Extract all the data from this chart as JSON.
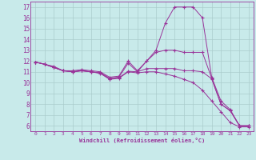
{
  "xlabel": "Windchill (Refroidissement éolien,°C)",
  "ylabel": "",
  "bg_color": "#c8eaea",
  "line_color": "#993399",
  "grid_color": "#aacccc",
  "xlim": [
    -0.5,
    23.5
  ],
  "ylim": [
    5.5,
    17.5
  ],
  "xticks": [
    0,
    1,
    2,
    3,
    4,
    5,
    6,
    7,
    8,
    9,
    10,
    11,
    12,
    13,
    14,
    15,
    16,
    17,
    18,
    19,
    20,
    21,
    22,
    23
  ],
  "yticks": [
    6,
    7,
    8,
    9,
    10,
    11,
    12,
    13,
    14,
    15,
    16,
    17
  ],
  "line1_x": [
    0,
    1,
    2,
    3,
    4,
    5,
    6,
    7,
    8,
    9,
    10,
    11,
    12,
    13,
    14,
    15,
    16,
    17,
    18,
    19,
    20,
    21,
    22,
    23
  ],
  "line1_y": [
    11.9,
    11.7,
    11.5,
    11.1,
    11.1,
    11.2,
    11.1,
    11.0,
    10.5,
    10.6,
    12.0,
    11.1,
    12.0,
    13.0,
    15.5,
    17.0,
    17.0,
    17.0,
    16.0,
    10.5,
    8.3,
    7.5,
    6.0,
    6.0
  ],
  "line2_x": [
    0,
    1,
    2,
    3,
    4,
    5,
    6,
    7,
    8,
    9,
    10,
    11,
    12,
    13,
    14,
    15,
    16,
    17,
    18,
    19,
    20,
    21,
    22,
    23
  ],
  "line2_y": [
    11.9,
    11.7,
    11.4,
    11.1,
    11.0,
    11.1,
    11.0,
    10.9,
    10.4,
    10.5,
    11.8,
    11.0,
    12.0,
    12.8,
    13.0,
    13.0,
    12.8,
    12.8,
    12.8,
    10.4,
    8.0,
    7.4,
    6.0,
    6.0
  ],
  "line3_x": [
    0,
    1,
    2,
    3,
    4,
    5,
    6,
    7,
    8,
    9,
    10,
    11,
    12,
    13,
    14,
    15,
    16,
    17,
    18,
    19,
    20,
    21,
    22,
    23
  ],
  "line3_y": [
    11.9,
    11.7,
    11.4,
    11.1,
    11.0,
    11.1,
    11.0,
    10.9,
    10.35,
    10.45,
    11.05,
    11.0,
    11.3,
    11.3,
    11.3,
    11.3,
    11.1,
    11.1,
    11.0,
    10.35,
    8.0,
    7.4,
    6.0,
    6.0
  ],
  "line4_x": [
    0,
    1,
    2,
    3,
    4,
    5,
    6,
    7,
    8,
    9,
    10,
    11,
    12,
    13,
    14,
    15,
    16,
    17,
    18,
    19,
    20,
    21,
    22,
    23
  ],
  "line4_y": [
    11.9,
    11.7,
    11.4,
    11.1,
    11.0,
    11.1,
    11.0,
    10.85,
    10.3,
    10.4,
    11.0,
    10.9,
    11.0,
    11.0,
    10.8,
    10.6,
    10.3,
    10.0,
    9.3,
    8.3,
    7.3,
    6.3,
    5.9,
    5.9
  ]
}
